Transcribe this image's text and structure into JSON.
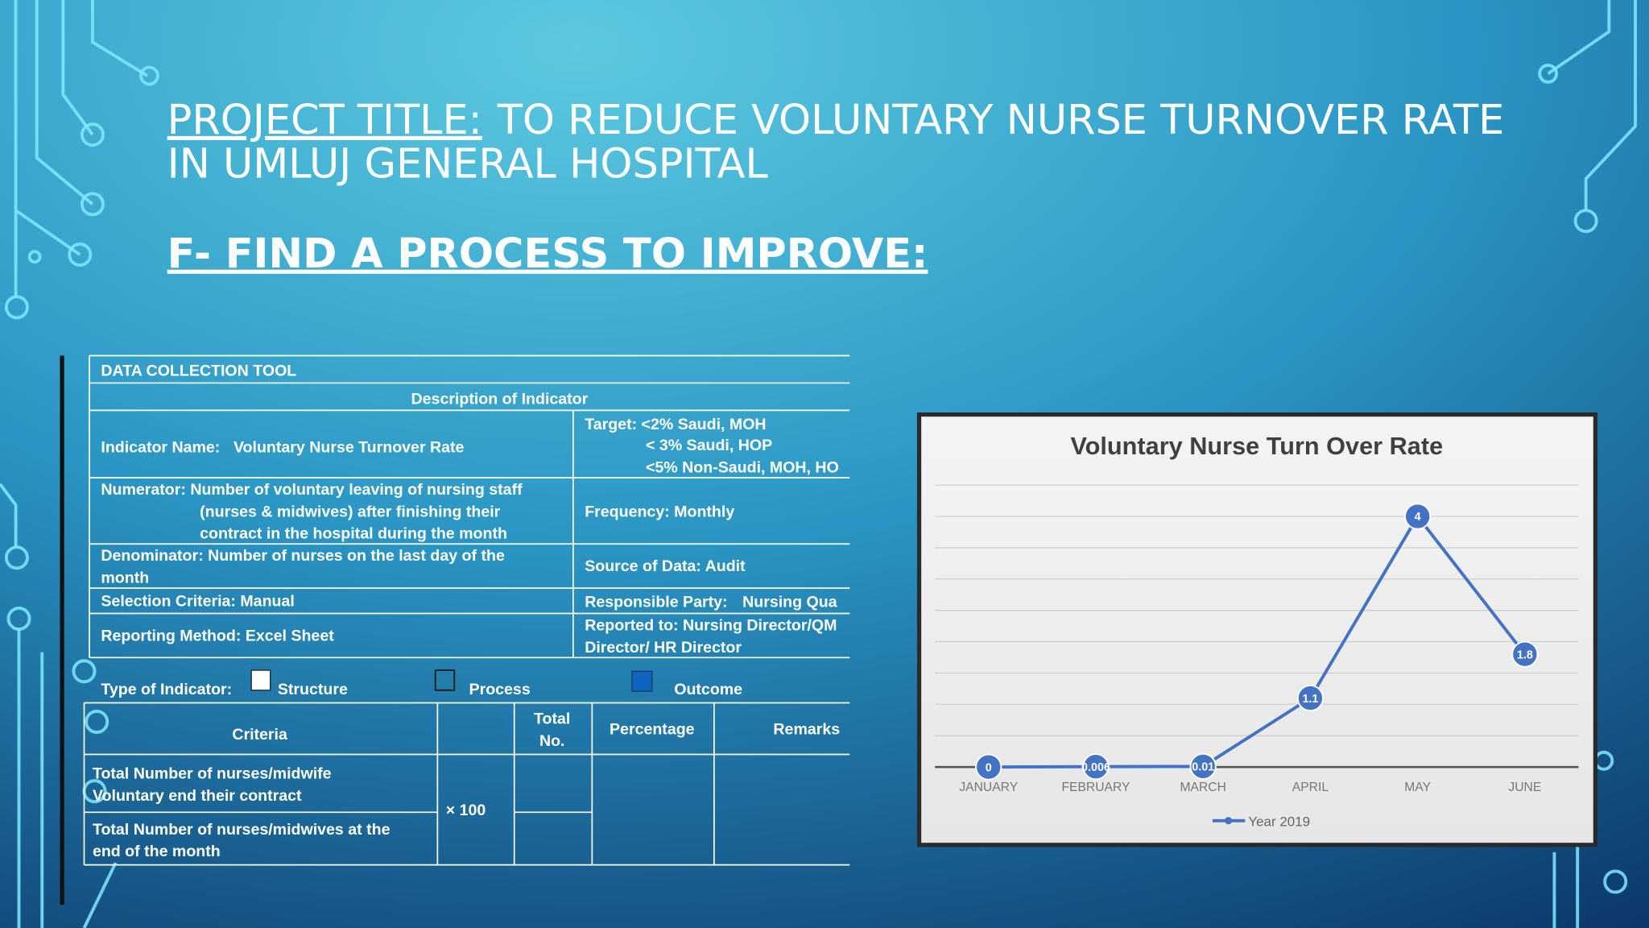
{
  "header": {
    "label": "PROJECT TITLE:",
    "title_lines": [
      "TO REDUCE VOLUNTARY NURSE TURNOVER RATE",
      "IN UMLUJ GENERAL HOSPITAL"
    ],
    "section": "F- FIND A PROCESS TO IMPROVE:"
  },
  "table": {
    "title": "DATA COLLECTION TOOL",
    "subtitle": "Description of Indicator",
    "indicator_label": "Indicator Name:",
    "indicator_name": "Voluntary Nurse Turnover Rate",
    "target": [
      "Target: <2% Saudi, MOH",
      "< 3% Saudi, HOP",
      "<5% Non-Saudi, MOH, HO"
    ],
    "numerator": [
      "Numerator: Number of voluntary leaving of nursing staff",
      "(nurses & midwives) after finishing their",
      "contract in the hospital during the month"
    ],
    "frequency": "Frequency: Monthly",
    "denominator": [
      "Denominator: Number of nurses on the last day of the",
      "month"
    ],
    "source": "Source of Data: Audit",
    "selection": "Selection Criteria: Manual",
    "responsible_label": "Responsible Party:",
    "responsible": "Nursing Qua",
    "reporting": "Reporting Method: Excel Sheet",
    "reported_to": [
      "Reported to: Nursing Director/QM",
      "Director/ HR Director"
    ],
    "type_label": "Type of Indicator:",
    "types": [
      "Structure",
      "Process",
      "Outcome"
    ],
    "columns": [
      "Criteria",
      [
        "Total",
        "No."
      ],
      "Percentage",
      "Remarks"
    ],
    "rows": [
      [
        "Total Number of nurses/midwife",
        "Voluntary end their contract"
      ],
      [
        "Total Number of nurses/midwives at the",
        "end of the month"
      ]
    ],
    "multiplier": "× 100"
  },
  "chart_data": {
    "type": "line",
    "title": "Voluntary Nurse Turn Over Rate",
    "categories": [
      "JANUARY",
      "FEBRUARY",
      "MARCH",
      "APRIL",
      "MAY",
      "JUNE"
    ],
    "series": [
      {
        "name": "Year 2019",
        "color": "#4472c4",
        "values": [
          0,
          0.006,
          0.01,
          1.1,
          4,
          1.8
        ]
      }
    ],
    "ylim": [
      0,
      4.5
    ],
    "yticks": [
      0,
      0.5,
      1,
      1.5,
      2,
      2.5,
      3,
      3.5,
      4,
      4.5
    ],
    "grid": true,
    "legend": "bottom"
  }
}
